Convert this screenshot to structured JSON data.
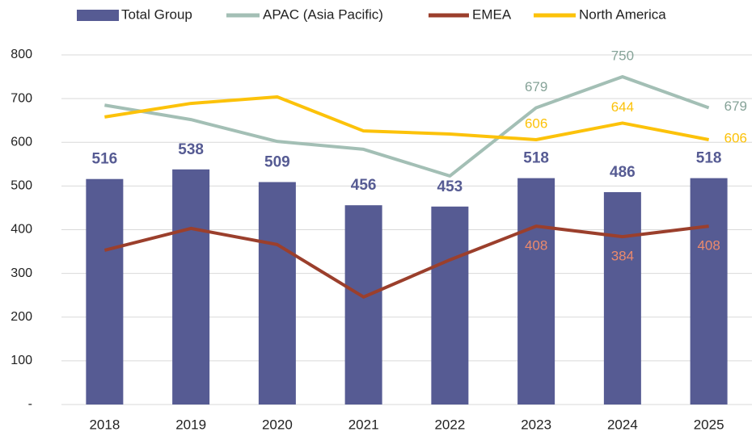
{
  "chart_data": {
    "type": "combo",
    "categories": [
      "2018",
      "2019",
      "2020",
      "2021",
      "2022",
      "2023",
      "2024",
      "2025"
    ],
    "series": [
      {
        "name": "Total Group",
        "type": "bar",
        "color": "#565b93",
        "label_color": "#565b93",
        "values": [
          516,
          538,
          509,
          456,
          453,
          518,
          486,
          518
        ]
      },
      {
        "name": "APAC (Asia Pacific)",
        "type": "line",
        "color": "#a3bfb5",
        "label_color": "#86a398",
        "values": [
          685,
          652,
          602,
          584,
          523,
          679,
          750,
          679
        ],
        "value_labels": [
          null,
          null,
          null,
          null,
          null,
          "679",
          "750",
          "679"
        ]
      },
      {
        "name": "EMEA",
        "type": "line",
        "color": "#9b3f2c",
        "label_color": "#ec8a6c",
        "values": [
          353,
          403,
          366,
          246,
          331,
          408,
          384,
          408
        ],
        "value_labels": [
          null,
          null,
          null,
          null,
          null,
          "408",
          "384",
          "408"
        ]
      },
      {
        "name": "North America",
        "type": "line",
        "color": "#fcc20a",
        "label_color": "#fcc20a",
        "values": [
          658,
          689,
          704,
          626,
          619,
          606,
          644,
          606
        ],
        "value_labels": [
          null,
          null,
          null,
          null,
          null,
          "606",
          "644",
          "606"
        ]
      }
    ],
    "ylim": [
      0,
      800
    ],
    "yticks": [
      {
        "value": 0,
        "label": "-"
      },
      100,
      200,
      300,
      400,
      500,
      600,
      700,
      800
    ],
    "grid": true,
    "legend": "top"
  }
}
